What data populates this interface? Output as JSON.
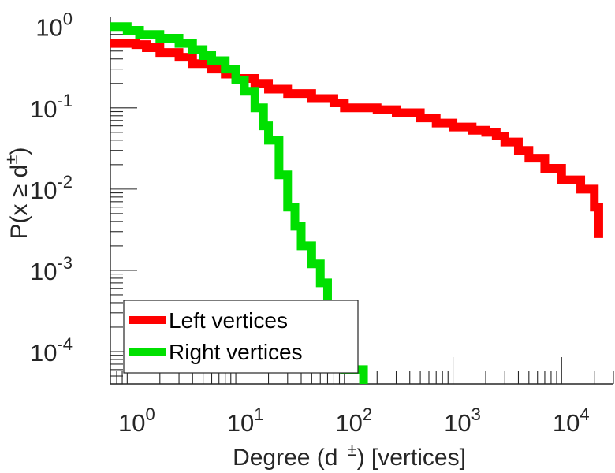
{
  "chart_data": {
    "type": "line",
    "xlabel_parts": [
      "Degree (d",
      "±",
      ") [vertices]"
    ],
    "ylabel_parts": [
      "P(x ",
      "≥",
      " d",
      "±",
      ")"
    ],
    "x_scale": "log",
    "y_scale": "log",
    "xlim": [
      0.7,
      30000
    ],
    "ylim": [
      4e-05,
      1.3
    ],
    "grid": false,
    "legend_position": "bottom-left",
    "x_ticks": [
      {
        "value": 1,
        "base": "10",
        "exp": "0"
      },
      {
        "value": 10,
        "base": "10",
        "exp": "1"
      },
      {
        "value": 100,
        "base": "10",
        "exp": "2"
      },
      {
        "value": 1000,
        "base": "10",
        "exp": "3"
      },
      {
        "value": 10000,
        "base": "10",
        "exp": "4"
      }
    ],
    "y_ticks": [
      {
        "value": 1,
        "base": "10",
        "exp": "0"
      },
      {
        "value": 0.1,
        "base": "10",
        "exp": "-1"
      },
      {
        "value": 0.01,
        "base": "10",
        "exp": "-2"
      },
      {
        "value": 0.001,
        "base": "10",
        "exp": "-3"
      },
      {
        "value": 0.0001,
        "base": "10",
        "exp": "-4"
      }
    ],
    "series": [
      {
        "name": "Left vertices",
        "color": "#ff0000",
        "x": [
          0.7,
          1.2,
          1.5,
          2,
          3,
          4,
          6,
          8,
          10,
          15,
          20,
          30,
          50,
          80,
          100,
          200,
          300,
          500,
          700,
          1000,
          1500,
          2000,
          2500,
          3000,
          4000,
          5000,
          7000,
          10000,
          15000,
          20000,
          22000,
          22000
        ],
        "y": [
          0.62,
          0.6,
          0.55,
          0.48,
          0.42,
          0.35,
          0.3,
          0.26,
          0.23,
          0.2,
          0.17,
          0.15,
          0.13,
          0.115,
          0.1,
          0.095,
          0.087,
          0.075,
          0.065,
          0.058,
          0.053,
          0.05,
          0.045,
          0.038,
          0.03,
          0.024,
          0.018,
          0.013,
          0.01,
          0.006,
          0.004,
          0.0025
        ]
      },
      {
        "name": "Right vertices",
        "color": "#00e000",
        "x": [
          0.7,
          1,
          1.3,
          2,
          3,
          4,
          5,
          6,
          8,
          10,
          12,
          15,
          18,
          20,
          25,
          30,
          35,
          40,
          50,
          60,
          70,
          80,
          90,
          100,
          150
        ],
        "y": [
          1.0,
          0.9,
          0.8,
          0.72,
          0.62,
          0.52,
          0.44,
          0.38,
          0.3,
          0.22,
          0.16,
          0.1,
          0.06,
          0.04,
          0.015,
          0.006,
          0.0035,
          0.002,
          0.0012,
          0.0007,
          0.00035,
          0.0002,
          0.0001,
          6e-05,
          4e-05
        ]
      }
    ]
  }
}
